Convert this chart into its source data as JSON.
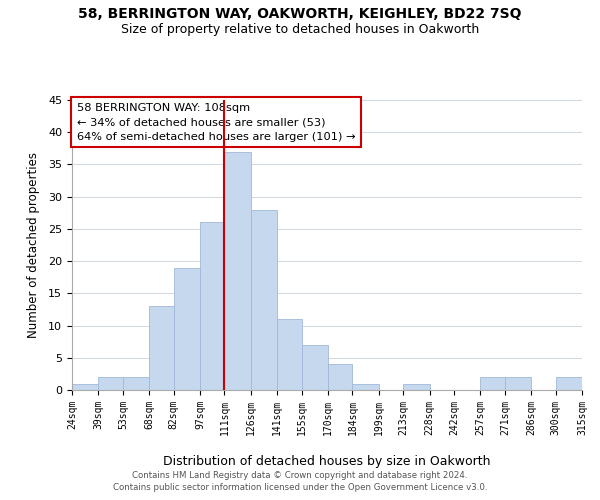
{
  "title1": "58, BERRINGTON WAY, OAKWORTH, KEIGHLEY, BD22 7SQ",
  "title2": "Size of property relative to detached houses in Oakworth",
  "xlabel": "Distribution of detached houses by size in Oakworth",
  "ylabel": "Number of detached properties",
  "bin_labels": [
    "24sqm",
    "39sqm",
    "53sqm",
    "68sqm",
    "82sqm",
    "97sqm",
    "111sqm",
    "126sqm",
    "141sqm",
    "155sqm",
    "170sqm",
    "184sqm",
    "199sqm",
    "213sqm",
    "228sqm",
    "242sqm",
    "257sqm",
    "271sqm",
    "286sqm",
    "300sqm",
    "315sqm"
  ],
  "bin_edges": [
    24,
    39,
    53,
    68,
    82,
    97,
    111,
    126,
    141,
    155,
    170,
    184,
    199,
    213,
    228,
    242,
    257,
    271,
    286,
    300,
    315
  ],
  "bar_heights": [
    1,
    2,
    2,
    13,
    19,
    26,
    37,
    28,
    11,
    7,
    4,
    1,
    0,
    1,
    0,
    0,
    2,
    2,
    0,
    2
  ],
  "bar_color": "#c5d8ed",
  "bar_edge_color": "#a0b8d8",
  "vline_color": "#cc0000",
  "vline_x_bin_index": 6,
  "annotation_line1": "58 BERRINGTON WAY: 108sqm",
  "annotation_line2": "← 34% of detached houses are smaller (53)",
  "annotation_line3": "64% of semi-detached houses are larger (101) →",
  "box_edge_color": "#cc0000",
  "ylim": [
    0,
    45
  ],
  "yticks": [
    0,
    5,
    10,
    15,
    20,
    25,
    30,
    35,
    40,
    45
  ],
  "footer1": "Contains HM Land Registry data © Crown copyright and database right 2024.",
  "footer2": "Contains public sector information licensed under the Open Government Licence v3.0."
}
